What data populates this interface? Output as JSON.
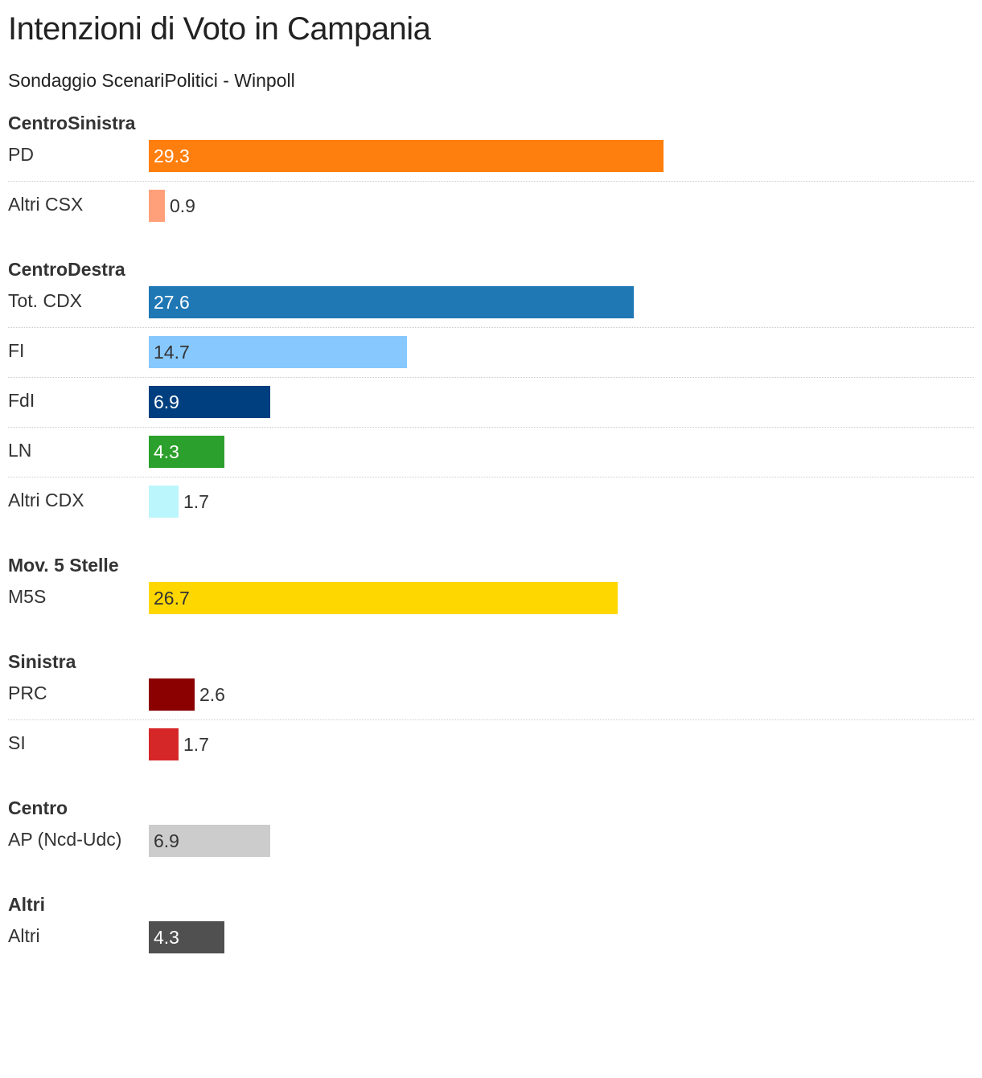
{
  "title": "Intenzioni di Voto in Campania",
  "subtitle": "Sondaggio ScenariPolitici - Winpoll",
  "chart_data": {
    "type": "bar",
    "orientation": "horizontal",
    "xlim": [
      0,
      29.3
    ],
    "groups": [
      {
        "name": "CentroSinistra",
        "items": [
          {
            "label": "PD",
            "value": 29.3,
            "color": "#ff7f0e",
            "label_color": "#ffffff"
          },
          {
            "label": "Altri CSX",
            "value": 0.9,
            "color": "#ffa07a",
            "label_color": "#333333"
          }
        ]
      },
      {
        "name": "CentroDestra",
        "items": [
          {
            "label": "Tot. CDX",
            "value": 27.6,
            "color": "#1f77b4",
            "label_color": "#ffffff"
          },
          {
            "label": "FI",
            "value": 14.7,
            "color": "#87c9ff",
            "label_color": "#333333"
          },
          {
            "label": "FdI",
            "value": 6.9,
            "color": "#003f7f",
            "label_color": "#ffffff"
          },
          {
            "label": "LN",
            "value": 4.3,
            "color": "#2ca02c",
            "label_color": "#ffffff"
          },
          {
            "label": "Altri CDX",
            "value": 1.7,
            "color": "#bbf6fc",
            "label_color": "#333333"
          }
        ]
      },
      {
        "name": "Mov. 5 Stelle",
        "items": [
          {
            "label": "M5S",
            "value": 26.7,
            "color": "#ffd700",
            "label_color": "#333333"
          }
        ]
      },
      {
        "name": "Sinistra",
        "items": [
          {
            "label": "PRC",
            "value": 2.6,
            "color": "#8b0000",
            "label_color": "#ffffff"
          },
          {
            "label": "SI",
            "value": 1.7,
            "color": "#d62728",
            "label_color": "#333333"
          }
        ]
      },
      {
        "name": "Centro",
        "items": [
          {
            "label": "AP (Ncd-Udc)",
            "value": 6.9,
            "color": "#cccccc",
            "label_color": "#333333"
          }
        ]
      },
      {
        "name": "Altri",
        "items": [
          {
            "label": "Altri",
            "value": 4.3,
            "color": "#505050",
            "label_color": "#ffffff"
          }
        ]
      }
    ]
  }
}
